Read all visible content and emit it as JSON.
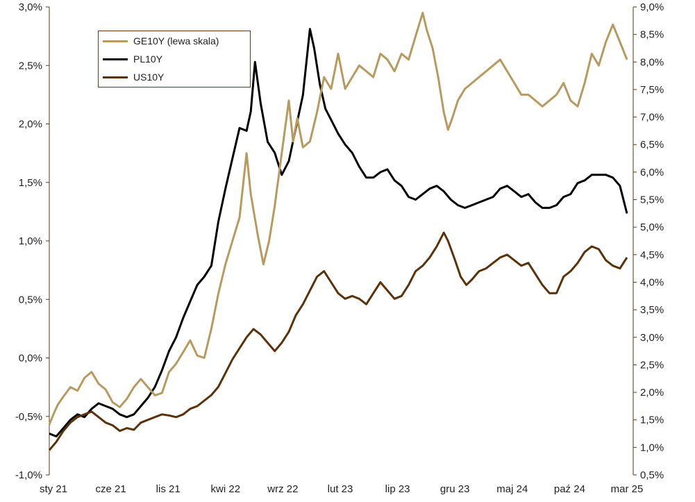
{
  "chart_data": {
    "type": "line",
    "x_labels": [
      "sty 21",
      "cze 21",
      "lis 21",
      "kwi 22",
      "wrz 22",
      "lut 23",
      "lip 23",
      "gru 23",
      "maj 24",
      "paź 24",
      "mar 25"
    ],
    "left_axis": {
      "range": [
        -1.0,
        3.0
      ],
      "ticks": [
        "-1,0%",
        "-0,5%",
        "0,0%",
        "0,5%",
        "1,0%",
        "1,5%",
        "2,0%",
        "2,5%",
        "3,0%"
      ]
    },
    "right_axis": {
      "range": [
        0.5,
        9.0
      ],
      "ticks": [
        "0,5%",
        "1,0%",
        "1,5%",
        "2,0%",
        "2,5%",
        "3,0%",
        "3,5%",
        "4,0%",
        "4,5%",
        "5,0%",
        "5,5%",
        "6,0%",
        "6,5%",
        "7,0%",
        "7,5%",
        "8,0%",
        "8,5%",
        "9,0%"
      ]
    },
    "legend": [
      "GE10Y (lewa skala)",
      "PL10Y",
      "US10Y"
    ],
    "series": [
      {
        "name": "GE10Y (lewa skala)",
        "axis": "left",
        "color": "#b89a5e",
        "points": [
          [
            0,
            -0.57
          ],
          [
            0.3,
            -0.48
          ],
          [
            0.6,
            -0.4
          ],
          [
            1.0,
            -0.33
          ],
          [
            1.5,
            -0.25
          ],
          [
            2.0,
            -0.28
          ],
          [
            2.5,
            -0.17
          ],
          [
            3.0,
            -0.12
          ],
          [
            3.5,
            -0.22
          ],
          [
            4.0,
            -0.27
          ],
          [
            4.5,
            -0.38
          ],
          [
            5.0,
            -0.42
          ],
          [
            5.5,
            -0.35
          ],
          [
            6.0,
            -0.25
          ],
          [
            6.5,
            -0.18
          ],
          [
            7.0,
            -0.25
          ],
          [
            7.5,
            -0.32
          ],
          [
            8.0,
            -0.3
          ],
          [
            8.5,
            -0.12
          ],
          [
            9.0,
            -0.05
          ],
          [
            9.5,
            0.05
          ],
          [
            10.0,
            0.15
          ],
          [
            10.5,
            0.02
          ],
          [
            11.0,
            0.0
          ],
          [
            11.5,
            0.25
          ],
          [
            12.0,
            0.55
          ],
          [
            12.5,
            0.8
          ],
          [
            13.0,
            1.0
          ],
          [
            13.5,
            1.2
          ],
          [
            14.0,
            1.75
          ],
          [
            14.3,
            1.4
          ],
          [
            14.8,
            1.05
          ],
          [
            15.2,
            0.8
          ],
          [
            15.6,
            1.0
          ],
          [
            16.0,
            1.3
          ],
          [
            16.5,
            1.75
          ],
          [
            17.0,
            2.2
          ],
          [
            17.3,
            1.85
          ],
          [
            17.6,
            2.05
          ],
          [
            18.0,
            1.8
          ],
          [
            18.5,
            1.85
          ],
          [
            19.0,
            2.1
          ],
          [
            19.5,
            2.4
          ],
          [
            20.0,
            2.3
          ],
          [
            20.5,
            2.6
          ],
          [
            21.0,
            2.3
          ],
          [
            21.5,
            2.4
          ],
          [
            22.0,
            2.5
          ],
          [
            22.5,
            2.45
          ],
          [
            23.0,
            2.4
          ],
          [
            23.5,
            2.6
          ],
          [
            24.0,
            2.55
          ],
          [
            24.5,
            2.45
          ],
          [
            25.0,
            2.6
          ],
          [
            25.5,
            2.55
          ],
          [
            26.0,
            2.75
          ],
          [
            26.5,
            2.95
          ],
          [
            26.8,
            2.8
          ],
          [
            27.2,
            2.65
          ],
          [
            27.6,
            2.4
          ],
          [
            28.0,
            2.1
          ],
          [
            28.3,
            1.95
          ],
          [
            28.6,
            2.05
          ],
          [
            29.0,
            2.2
          ],
          [
            29.5,
            2.3
          ],
          [
            30.0,
            2.35
          ],
          [
            30.5,
            2.4
          ],
          [
            31.0,
            2.45
          ],
          [
            31.5,
            2.5
          ],
          [
            32.0,
            2.55
          ],
          [
            32.5,
            2.45
          ],
          [
            33.0,
            2.35
          ],
          [
            33.5,
            2.25
          ],
          [
            34.0,
            2.25
          ],
          [
            34.5,
            2.2
          ],
          [
            35.0,
            2.15
          ],
          [
            35.5,
            2.2
          ],
          [
            36.0,
            2.25
          ],
          [
            36.5,
            2.35
          ],
          [
            37.0,
            2.2
          ],
          [
            37.5,
            2.15
          ],
          [
            38.0,
            2.35
          ],
          [
            38.5,
            2.6
          ],
          [
            39.0,
            2.5
          ],
          [
            39.5,
            2.7
          ],
          [
            40.0,
            2.85
          ],
          [
            40.5,
            2.7
          ],
          [
            41.0,
            2.55
          ]
        ]
      },
      {
        "name": "PL10Y",
        "axis": "right",
        "color": "#000000",
        "points": [
          [
            0,
            1.25
          ],
          [
            0.5,
            1.2
          ],
          [
            1.0,
            1.35
          ],
          [
            1.5,
            1.5
          ],
          [
            2.0,
            1.6
          ],
          [
            2.5,
            1.55
          ],
          [
            3.0,
            1.7
          ],
          [
            3.5,
            1.8
          ],
          [
            4.0,
            1.75
          ],
          [
            4.5,
            1.7
          ],
          [
            5.0,
            1.6
          ],
          [
            5.5,
            1.55
          ],
          [
            6.0,
            1.6
          ],
          [
            6.5,
            1.75
          ],
          [
            7.0,
            1.9
          ],
          [
            7.5,
            2.1
          ],
          [
            8.0,
            2.4
          ],
          [
            8.5,
            2.75
          ],
          [
            9.0,
            3.0
          ],
          [
            9.5,
            3.35
          ],
          [
            10.0,
            3.65
          ],
          [
            10.5,
            3.95
          ],
          [
            11.0,
            4.1
          ],
          [
            11.5,
            4.3
          ],
          [
            12.0,
            5.1
          ],
          [
            12.5,
            5.7
          ],
          [
            13.0,
            6.25
          ],
          [
            13.5,
            6.8
          ],
          [
            14.0,
            6.75
          ],
          [
            14.3,
            7.1
          ],
          [
            14.6,
            8.0
          ],
          [
            15.0,
            7.25
          ],
          [
            15.5,
            6.55
          ],
          [
            16.0,
            6.35
          ],
          [
            16.5,
            5.95
          ],
          [
            17.0,
            6.2
          ],
          [
            17.5,
            6.8
          ],
          [
            18.0,
            7.4
          ],
          [
            18.5,
            8.6
          ],
          [
            18.8,
            8.25
          ],
          [
            19.2,
            7.6
          ],
          [
            19.6,
            7.15
          ],
          [
            20.0,
            6.95
          ],
          [
            20.5,
            6.7
          ],
          [
            21.0,
            6.5
          ],
          [
            21.5,
            6.35
          ],
          [
            22.0,
            6.1
          ],
          [
            22.5,
            5.9
          ],
          [
            23.0,
            5.9
          ],
          [
            23.5,
            6.0
          ],
          [
            24.0,
            6.05
          ],
          [
            24.5,
            5.85
          ],
          [
            25.0,
            5.75
          ],
          [
            25.5,
            5.55
          ],
          [
            26.0,
            5.5
          ],
          [
            26.5,
            5.6
          ],
          [
            27.0,
            5.7
          ],
          [
            27.5,
            5.75
          ],
          [
            28.0,
            5.65
          ],
          [
            28.5,
            5.5
          ],
          [
            29.0,
            5.4
          ],
          [
            29.5,
            5.35
          ],
          [
            30.0,
            5.4
          ],
          [
            30.5,
            5.45
          ],
          [
            31.0,
            5.5
          ],
          [
            31.5,
            5.55
          ],
          [
            32.0,
            5.7
          ],
          [
            32.5,
            5.75
          ],
          [
            33.0,
            5.65
          ],
          [
            33.5,
            5.55
          ],
          [
            34.0,
            5.6
          ],
          [
            34.5,
            5.45
          ],
          [
            35.0,
            5.35
          ],
          [
            35.5,
            5.35
          ],
          [
            36.0,
            5.4
          ],
          [
            36.5,
            5.55
          ],
          [
            37.0,
            5.6
          ],
          [
            37.5,
            5.8
          ],
          [
            38.0,
            5.85
          ],
          [
            38.5,
            5.95
          ],
          [
            39.0,
            5.95
          ],
          [
            39.5,
            5.95
          ],
          [
            40.0,
            5.9
          ],
          [
            40.5,
            5.75
          ],
          [
            41.0,
            5.25
          ]
        ]
      },
      {
        "name": "US10Y",
        "axis": "right",
        "color": "#5c3108",
        "points": [
          [
            0,
            0.95
          ],
          [
            0.5,
            1.1
          ],
          [
            1.0,
            1.3
          ],
          [
            1.5,
            1.45
          ],
          [
            2.0,
            1.55
          ],
          [
            2.5,
            1.6
          ],
          [
            3.0,
            1.65
          ],
          [
            3.5,
            1.55
          ],
          [
            4.0,
            1.45
          ],
          [
            4.5,
            1.4
          ],
          [
            5.0,
            1.3
          ],
          [
            5.5,
            1.35
          ],
          [
            6.0,
            1.32
          ],
          [
            6.5,
            1.45
          ],
          [
            7.0,
            1.5
          ],
          [
            7.5,
            1.55
          ],
          [
            8.0,
            1.6
          ],
          [
            8.5,
            1.58
          ],
          [
            9.0,
            1.55
          ],
          [
            9.5,
            1.6
          ],
          [
            10.0,
            1.7
          ],
          [
            10.5,
            1.75
          ],
          [
            11.0,
            1.85
          ],
          [
            11.5,
            1.95
          ],
          [
            12.0,
            2.1
          ],
          [
            12.5,
            2.35
          ],
          [
            13.0,
            2.6
          ],
          [
            13.5,
            2.8
          ],
          [
            14.0,
            3.0
          ],
          [
            14.5,
            3.15
          ],
          [
            15.0,
            3.05
          ],
          [
            15.5,
            2.9
          ],
          [
            16.0,
            2.75
          ],
          [
            16.5,
            2.9
          ],
          [
            17.0,
            3.1
          ],
          [
            17.5,
            3.4
          ],
          [
            18.0,
            3.6
          ],
          [
            18.5,
            3.85
          ],
          [
            19.0,
            4.1
          ],
          [
            19.5,
            4.2
          ],
          [
            20.0,
            4.0
          ],
          [
            20.5,
            3.8
          ],
          [
            21.0,
            3.7
          ],
          [
            21.5,
            3.75
          ],
          [
            22.0,
            3.7
          ],
          [
            22.5,
            3.6
          ],
          [
            23.0,
            3.8
          ],
          [
            23.5,
            4.0
          ],
          [
            24.0,
            3.85
          ],
          [
            24.5,
            3.7
          ],
          [
            25.0,
            3.75
          ],
          [
            25.5,
            3.95
          ],
          [
            26.0,
            4.2
          ],
          [
            26.5,
            4.3
          ],
          [
            27.0,
            4.45
          ],
          [
            27.5,
            4.65
          ],
          [
            28.0,
            4.9
          ],
          [
            28.3,
            4.75
          ],
          [
            28.8,
            4.4
          ],
          [
            29.2,
            4.1
          ],
          [
            29.6,
            3.95
          ],
          [
            30.0,
            4.05
          ],
          [
            30.5,
            4.2
          ],
          [
            31.0,
            4.25
          ],
          [
            31.5,
            4.35
          ],
          [
            32.0,
            4.45
          ],
          [
            32.5,
            4.5
          ],
          [
            33.0,
            4.4
          ],
          [
            33.5,
            4.3
          ],
          [
            34.0,
            4.35
          ],
          [
            34.5,
            4.15
          ],
          [
            35.0,
            3.95
          ],
          [
            35.5,
            3.8
          ],
          [
            36.0,
            3.8
          ],
          [
            36.5,
            4.1
          ],
          [
            37.0,
            4.2
          ],
          [
            37.5,
            4.35
          ],
          [
            38.0,
            4.55
          ],
          [
            38.5,
            4.65
          ],
          [
            39.0,
            4.6
          ],
          [
            39.5,
            4.4
          ],
          [
            40.0,
            4.3
          ],
          [
            40.5,
            4.25
          ],
          [
            41.0,
            4.45
          ]
        ]
      }
    ]
  }
}
